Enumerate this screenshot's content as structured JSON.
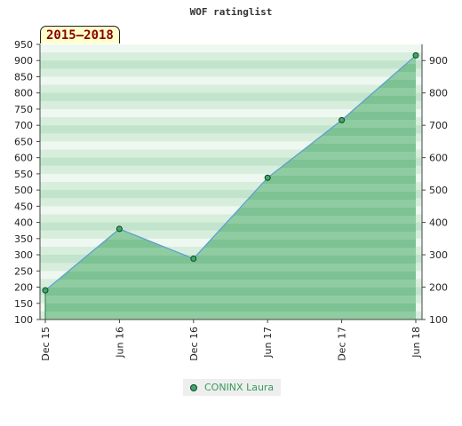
{
  "chart_data": {
    "type": "area",
    "title": "WOF ratinglist",
    "period_label": "2015–2018",
    "x": [
      "Dec 15",
      "Jun 16",
      "Dec 16",
      "Jun 17",
      "Dec 17",
      "Jun 18"
    ],
    "series": [
      {
        "name": "CONINX Laura",
        "values": [
          190,
          380,
          288,
          538,
          716,
          916
        ]
      }
    ],
    "ylim": [
      100,
      950
    ],
    "y_left_ticks": [
      100,
      150,
      200,
      250,
      300,
      350,
      400,
      450,
      500,
      550,
      600,
      650,
      700,
      750,
      800,
      850,
      900,
      950
    ],
    "y_right_ticks": [
      100,
      200,
      300,
      400,
      500,
      600,
      700,
      800,
      900
    ],
    "grid": true,
    "legend_position": "bottom-center",
    "colors": {
      "area": "#7cc293",
      "line": "#5b9bd5",
      "marker": "#3fa76a",
      "title": "#333333",
      "legend_text": "#3a9a5a"
    }
  }
}
